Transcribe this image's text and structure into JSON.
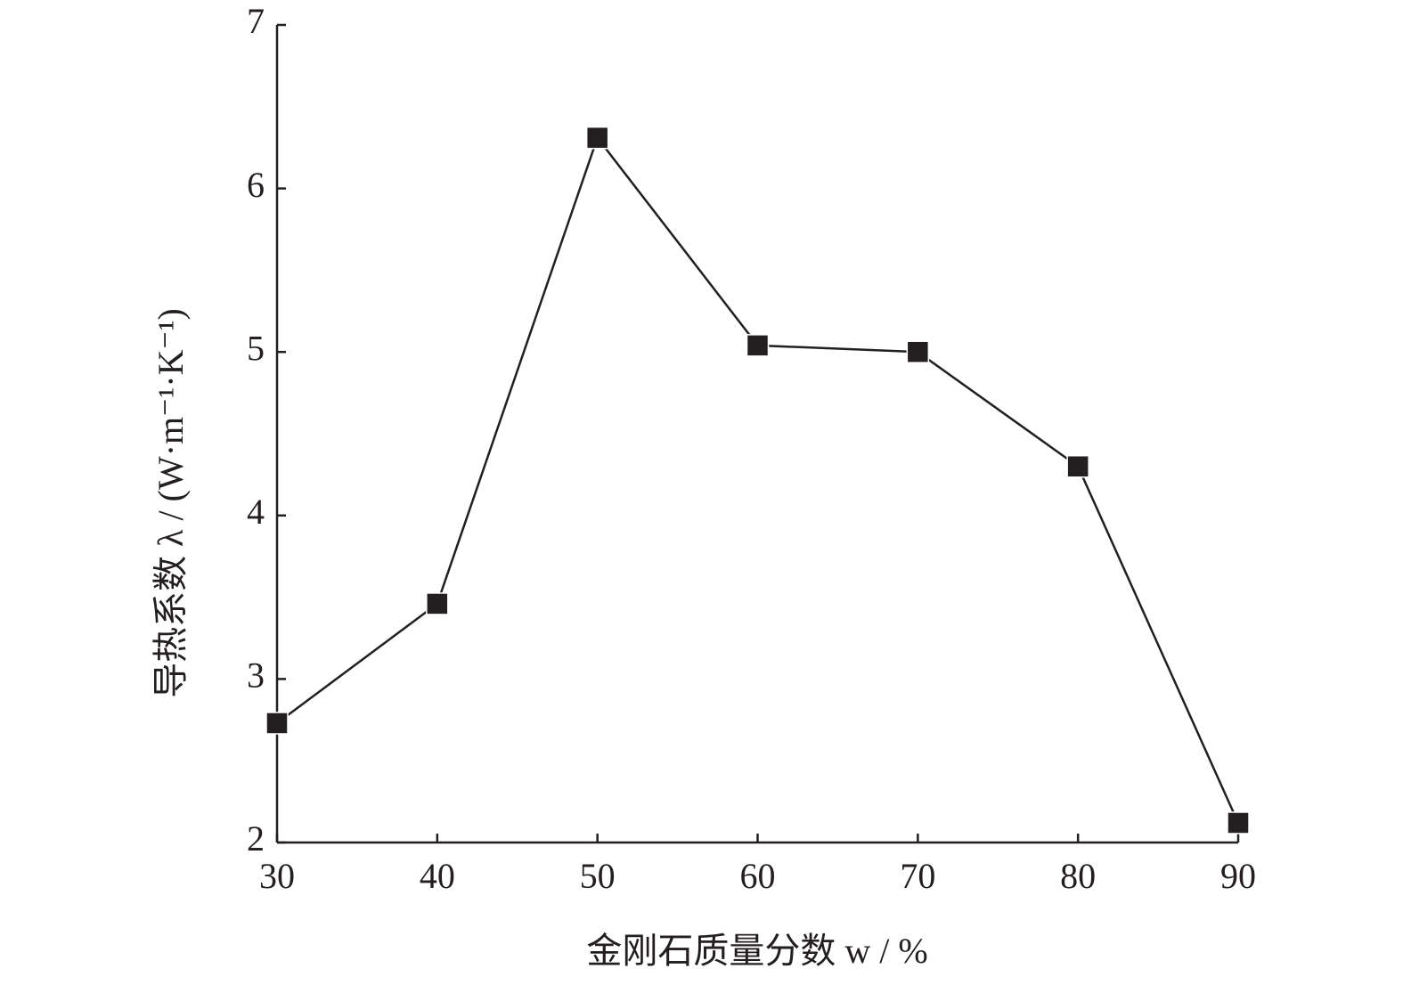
{
  "chart_data": {
    "type": "line",
    "x_label": "金刚石质量分数 w / %",
    "y_label": "导热系数 λ / (W·m⁻¹·K⁻¹)",
    "x": [
      30,
      40,
      50,
      60,
      70,
      80,
      90
    ],
    "series": [
      {
        "color": "#231f20",
        "values": [
          2.73,
          3.46,
          6.31,
          5.04,
          5.0,
          4.3,
          2.12
        ]
      }
    ],
    "xlim": [
      30,
      90
    ],
    "xticks": [
      30,
      40,
      50,
      60,
      70,
      80,
      90
    ],
    "ylim": [
      2,
      7
    ],
    "yticks": [
      2,
      3,
      4,
      5,
      6,
      7
    ]
  }
}
